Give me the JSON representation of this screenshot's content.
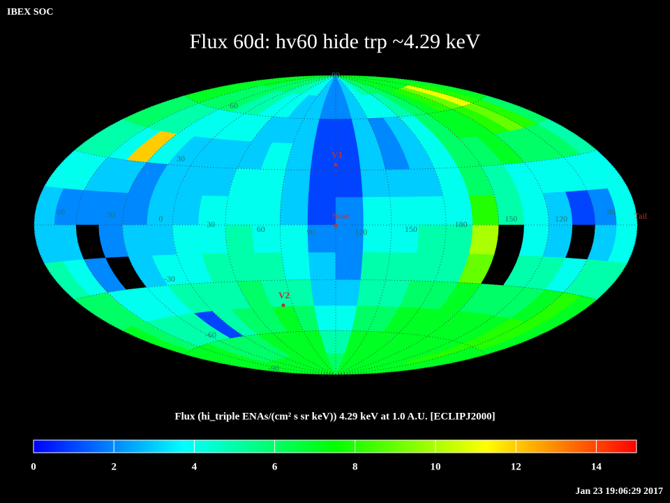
{
  "header": {
    "corner_label": "IBEX SOC",
    "timestamp": "Jan 23 19:06:29 2017"
  },
  "chart_data": {
    "type": "skymap",
    "title": "Flux   60d: hv60 hide trp ~4.29 keV",
    "colorbar_label": "Flux (hi_triple ENAs/(cm² s sr keV))  4.29 keV at 1.0 A.U. [ECLIPJ2000]",
    "clim": [
      0,
      15
    ],
    "cticks": [
      0,
      2,
      4,
      6,
      8,
      10,
      12,
      14
    ],
    "colormap": [
      "#0000ff",
      "#0080ff",
      "#00ffff",
      "#00ff80",
      "#00ff00",
      "#80ff00",
      "#ffff00",
      "#ff8000",
      "#ff0000"
    ],
    "nodata_color": "#000000",
    "lon_labels": [
      60,
      30,
      0,
      30,
      60,
      90,
      120,
      150,
      180,
      150,
      120,
      90
    ],
    "lat_labels": [
      90,
      60,
      30,
      -30,
      -60,
      -90
    ],
    "markers": [
      "V1",
      "Nose",
      "V2",
      "Tail"
    ],
    "flux_grid": {
      "rows": [
        [
          7,
          7,
          7,
          6,
          6,
          6,
          5,
          5,
          4,
          4,
          3,
          2,
          2,
          3,
          4,
          5,
          6,
          6,
          7,
          7,
          7,
          7,
          7,
          7
        ],
        [
          7,
          7,
          6,
          6,
          6,
          5,
          5,
          4,
          4,
          3,
          3,
          2,
          2,
          3,
          4,
          4,
          5,
          6,
          7,
          8,
          9,
          11,
          8,
          7
        ],
        [
          6,
          6,
          5,
          5,
          4,
          4,
          4,
          4,
          3,
          3,
          3,
          1,
          1,
          3,
          2,
          3,
          4,
          6,
          7,
          7,
          8,
          9,
          8,
          6
        ],
        [
          5,
          5,
          4,
          12,
          4,
          3,
          3,
          3,
          3,
          4,
          3,
          1,
          1,
          3,
          2,
          3,
          4,
          6,
          6,
          7,
          6,
          6,
          6,
          5
        ],
        [
          4,
          4,
          3,
          3,
          2,
          3,
          3,
          3,
          4,
          4,
          3,
          1,
          1,
          3,
          3,
          3,
          4,
          6,
          5,
          4,
          4,
          4,
          4,
          4
        ],
        [
          3,
          2,
          2,
          2,
          2,
          3,
          3,
          4,
          4,
          4,
          3,
          1,
          2,
          4,
          4,
          4,
          4,
          8,
          5,
          4,
          3,
          1,
          2,
          4
        ],
        [
          3,
          3,
          null,
          2,
          3,
          3,
          4,
          4,
          5,
          4,
          4,
          2,
          2,
          4,
          4,
          5,
          5,
          10,
          null,
          4,
          3,
          null,
          3,
          4
        ],
        [
          5,
          4,
          2,
          null,
          3,
          4,
          4,
          5,
          5,
          5,
          4,
          3,
          2,
          5,
          5,
          5,
          5,
          9,
          null,
          5,
          5,
          4,
          5,
          5
        ],
        [
          6,
          6,
          4,
          4,
          4,
          5,
          5,
          5,
          6,
          5,
          5,
          3,
          3,
          5,
          5,
          6,
          6,
          7,
          6,
          6,
          6,
          7,
          8,
          7
        ],
        [
          7,
          6,
          5,
          5,
          5,
          1,
          5,
          6,
          6,
          7,
          6,
          4,
          4,
          6,
          6,
          7,
          7,
          7,
          7,
          7,
          7,
          8,
          8,
          7
        ],
        [
          7,
          7,
          7,
          6,
          6,
          6,
          6,
          7,
          7,
          7,
          7,
          5,
          5,
          7,
          7,
          7,
          7,
          7,
          7,
          7,
          7,
          8,
          7,
          7
        ],
        [
          7,
          7,
          7,
          7,
          7,
          7,
          7,
          7,
          7,
          7,
          7,
          6,
          6,
          7,
          7,
          7,
          7,
          7,
          7,
          7,
          7,
          7,
          7,
          7
        ]
      ]
    }
  }
}
